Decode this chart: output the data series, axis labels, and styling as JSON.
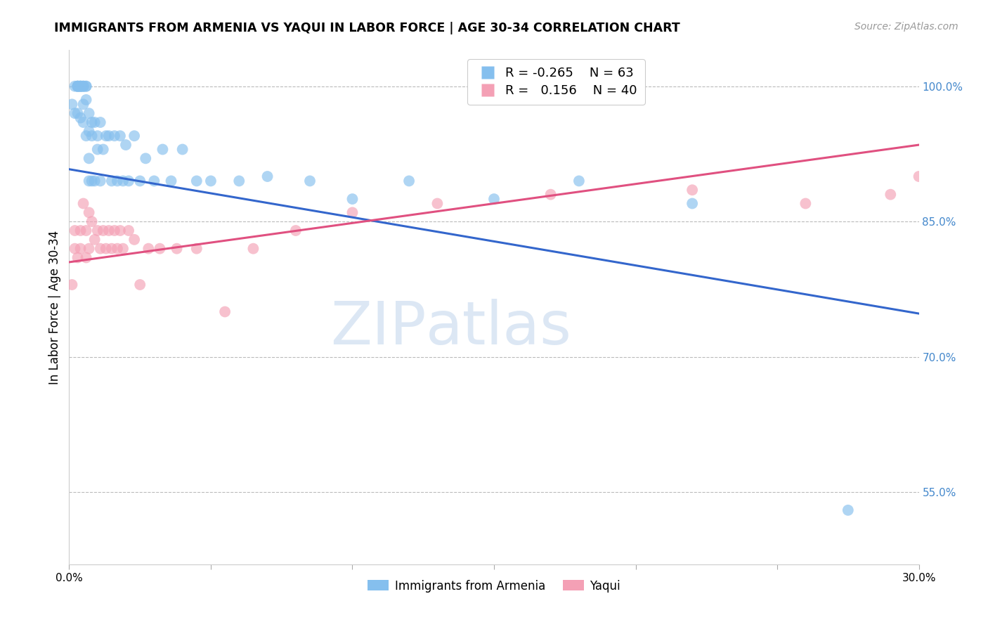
{
  "title": "IMMIGRANTS FROM ARMENIA VS YAQUI IN LABOR FORCE | AGE 30-34 CORRELATION CHART",
  "source": "Source: ZipAtlas.com",
  "ylabel": "In Labor Force | Age 30-34",
  "watermark_zip": "ZIP",
  "watermark_atlas": "atlas",
  "xlim": [
    0.0,
    0.3
  ],
  "ylim": [
    0.47,
    1.04
  ],
  "yticks_right": [
    0.55,
    0.7,
    0.85,
    1.0
  ],
  "yticklabels_right": [
    "55.0%",
    "70.0%",
    "85.0%",
    "100.0%"
  ],
  "legend_R1": "-0.265",
  "legend_N1": "63",
  "legend_R2": "0.156",
  "legend_N2": "40",
  "color_blue": "#85BFEE",
  "color_pink": "#F4A0B5",
  "line_color_blue": "#3366CC",
  "line_color_pink": "#E05080",
  "background_color": "#FFFFFF",
  "grid_color": "#BBBBBB",
  "armenia_x": [
    0.001,
    0.002,
    0.002,
    0.003,
    0.003,
    0.003,
    0.003,
    0.003,
    0.004,
    0.004,
    0.004,
    0.004,
    0.004,
    0.005,
    0.005,
    0.005,
    0.005,
    0.005,
    0.006,
    0.006,
    0.006,
    0.006,
    0.007,
    0.007,
    0.007,
    0.007,
    0.008,
    0.008,
    0.008,
    0.009,
    0.009,
    0.01,
    0.01,
    0.011,
    0.011,
    0.012,
    0.013,
    0.014,
    0.015,
    0.016,
    0.017,
    0.018,
    0.019,
    0.02,
    0.021,
    0.023,
    0.025,
    0.027,
    0.03,
    0.033,
    0.036,
    0.04,
    0.045,
    0.05,
    0.06,
    0.07,
    0.085,
    0.1,
    0.12,
    0.15,
    0.18,
    0.22,
    0.275
  ],
  "armenia_y": [
    0.98,
    1.0,
    0.97,
    1.0,
    1.0,
    1.0,
    0.97,
    1.0,
    1.0,
    1.0,
    1.0,
    0.965,
    1.0,
    1.0,
    0.98,
    0.96,
    1.0,
    1.0,
    1.0,
    0.945,
    1.0,
    0.985,
    0.95,
    0.97,
    0.92,
    0.895,
    0.96,
    0.945,
    0.895,
    0.96,
    0.895,
    0.945,
    0.93,
    0.895,
    0.96,
    0.93,
    0.945,
    0.945,
    0.895,
    0.945,
    0.895,
    0.945,
    0.895,
    0.935,
    0.895,
    0.945,
    0.895,
    0.92,
    0.895,
    0.93,
    0.895,
    0.93,
    0.895,
    0.895,
    0.895,
    0.9,
    0.895,
    0.875,
    0.895,
    0.875,
    0.895,
    0.87,
    0.53
  ],
  "yaqui_x": [
    0.001,
    0.002,
    0.002,
    0.003,
    0.004,
    0.004,
    0.005,
    0.006,
    0.006,
    0.007,
    0.007,
    0.008,
    0.009,
    0.01,
    0.011,
    0.012,
    0.013,
    0.014,
    0.015,
    0.016,
    0.017,
    0.018,
    0.019,
    0.021,
    0.023,
    0.025,
    0.028,
    0.032,
    0.038,
    0.045,
    0.055,
    0.065,
    0.08,
    0.1,
    0.13,
    0.17,
    0.22,
    0.26,
    0.29,
    0.3
  ],
  "yaqui_y": [
    0.78,
    0.82,
    0.84,
    0.81,
    0.84,
    0.82,
    0.87,
    0.84,
    0.81,
    0.86,
    0.82,
    0.85,
    0.83,
    0.84,
    0.82,
    0.84,
    0.82,
    0.84,
    0.82,
    0.84,
    0.82,
    0.84,
    0.82,
    0.84,
    0.83,
    0.78,
    0.82,
    0.82,
    0.82,
    0.82,
    0.75,
    0.82,
    0.84,
    0.86,
    0.87,
    0.88,
    0.885,
    0.87,
    0.88,
    0.9
  ],
  "blue_line_x0": 0.0,
  "blue_line_y0": 0.908,
  "blue_line_x1": 0.3,
  "blue_line_y1": 0.748,
  "pink_line_x0": 0.0,
  "pink_line_y0": 0.805,
  "pink_line_x1": 0.3,
  "pink_line_y1": 0.935
}
